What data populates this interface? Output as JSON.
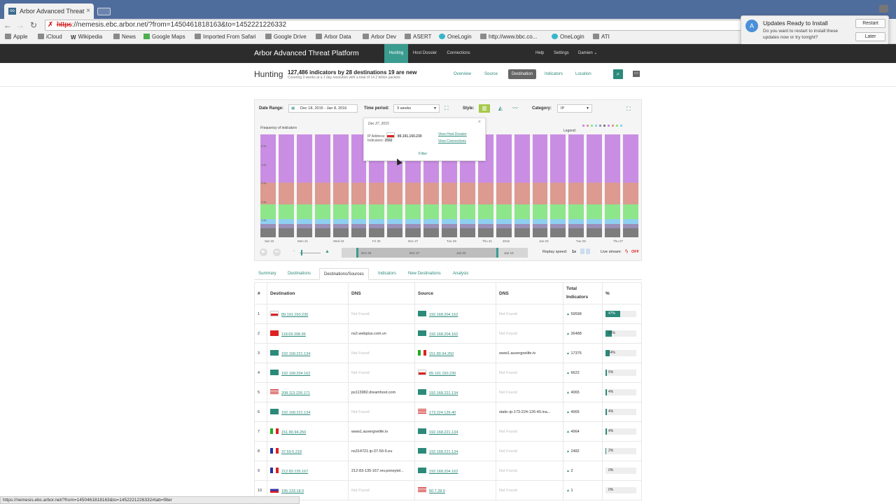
{
  "browser": {
    "tab_title": "Arbor Advanced Threat Plа",
    "tab_icon": "oo",
    "url_scheme": "https",
    "url_rest": "://nemesis.ebc.arbor.net/?from=1450461818163&to=1452221226332",
    "bookmarks": [
      "Apple",
      "iCloud",
      "Wikipedia",
      "News",
      "Google Maps",
      "Imported From Safari",
      "Google Drive",
      "Arbor Data",
      "Arbor Dev",
      "ASERT",
      "OneLogin",
      "http://www.bbc.co...",
      "OneLogin",
      "ATI"
    ],
    "status_url": "https://nemesis.ebc.arbor.net/?from=1450461818163&to=1452221226332#tab=filter"
  },
  "notification": {
    "title": "Updates Ready to Install",
    "message": "Do you want to restart to install these updates now or try tonight?",
    "restart_label": "Restart",
    "later_label": "Later"
  },
  "app": {
    "brand": "Arbor Advanced Threat Platform",
    "nav": [
      "Hunting",
      "Host Dossier",
      "Connections"
    ],
    "nav_active": "Hunting",
    "right_links": [
      "Help",
      "Settings",
      "Damien ⌄"
    ]
  },
  "hunting": {
    "title": "Hunting",
    "stat": "127,486 indicators by 28 destinations 19 are new",
    "substat": "Covering 3 weeks at a 1 day resolution with a total of 14.2 billion packets",
    "subnav": [
      "Overview",
      "Source",
      "Destination",
      "Indicators",
      "Location"
    ],
    "subnav_active": "Destination"
  },
  "controls": {
    "date_range_label": "Date Range:",
    "date_range_value": "Dec 18, 2015 - Jan 8, 2016",
    "time_period_label": "Time period:",
    "time_period_value": "3 weeks",
    "style_label": "Style:",
    "category_label": "Category:",
    "category_value": "IP"
  },
  "chart_data": {
    "type": "bar",
    "caption": "Frequency of indicators",
    "legend_label": "Legend:",
    "x_ticks": [
      "Sat 19",
      "Mon 21",
      "Wed 23",
      "Fri 25",
      "Dec 27",
      "Tue 29",
      "Thu 31",
      "2016",
      "Jan 03",
      "Tue 05",
      "Thu 07"
    ],
    "y_ticks": [
      "6.0k",
      "4.0k",
      "3.0k",
      "2.0k",
      "1.0k"
    ],
    "layers": [
      {
        "color": "#c98ee3",
        "share": 0.47
      },
      {
        "color": "#dc9a90",
        "share": 0.21
      },
      {
        "color": "#8ee68a",
        "share": 0.14
      },
      {
        "color": "#8fd0f0",
        "share": 0.05
      },
      {
        "color": "#9a8fb8",
        "share": 0.04
      },
      {
        "color": "#7d7d7d",
        "share": 0.09
      }
    ],
    "tooltip": {
      "date": "Dec 27, 2015",
      "ip_label": "IP Address:",
      "ip": "89.191.150.230",
      "indicators_label": "Indicators:",
      "indicators": "2592",
      "link_host": "View Host Dossier",
      "link_conn": "View Connections",
      "filter": "Filter"
    }
  },
  "timeline": {
    "labels": [
      "Dec 20",
      "Dec 27",
      "Jan 03",
      "Jan 10"
    ],
    "replay_label": "Replay speed:",
    "replay_value": "1x",
    "live_label": "Live stream:",
    "live_value": "OFF"
  },
  "detail_tabs": [
    "Summary",
    "Destinations",
    "Destinations/Sources",
    "Indicators",
    "New Destinations",
    "Analysis"
  ],
  "detail_tab_active": "Destinations/Sources",
  "table": {
    "headers": [
      "#",
      "Destination",
      "DNS",
      "Source",
      "DNS",
      "Total Indicators",
      "%"
    ],
    "rows": [
      {
        "n": "1",
        "dest": "89.191.150.230",
        "dflag": "pl",
        "ddns": "Not Found",
        "src": "192.168.204.162",
        "sflag": "lan",
        "sdns": "Not Found",
        "total": "59598",
        "pct": "47%",
        "p": 47
      },
      {
        "n": "2",
        "dest": "118.69.208.95",
        "dflag": "vn",
        "ddns": "ns2.webplus.com.vn",
        "src": "192.168.204.162",
        "sflag": "lan",
        "sdns": "Not Found",
        "total": "26488",
        "pct": "21%",
        "p": 21
      },
      {
        "n": "3",
        "dest": "192.168.221.134",
        "dflag": "lan",
        "ddns": "Not Found",
        "src": "151.80.94.250",
        "sflag": "it",
        "sdns": "www1.auvergnelife.tv",
        "total": "17376",
        "pct": "14%",
        "p": 14
      },
      {
        "n": "4",
        "dest": "192.168.204.162",
        "dflag": "lan",
        "ddns": "Not Found",
        "src": "89.191.150.230",
        "sflag": "pl",
        "sdns": "Not Found",
        "total": "6622",
        "pct": "5%",
        "p": 5
      },
      {
        "n": "5",
        "dest": "208.113.226.171",
        "dflag": "us",
        "ddns": "ps113982.dreamhost.com",
        "src": "192.168.221.134",
        "sflag": "lan",
        "sdns": "Not Found",
        "total": "4965",
        "pct": "4%",
        "p": 4
      },
      {
        "n": "6",
        "dest": "192.168.221.134",
        "dflag": "lan",
        "ddns": "Not Found",
        "src": "173.224.126.40",
        "sflag": "us",
        "sdns": "static-ip-173-224-126-40.ina...",
        "total": "4965",
        "pct": "4%",
        "p": 4
      },
      {
        "n": "7",
        "dest": "151.80.94.250",
        "dflag": "it",
        "ddns": "www1.auvergnelife.tv",
        "src": "192.168.221.134",
        "sflag": "lan",
        "sdns": "Not Found",
        "total": "4964",
        "pct": "4%",
        "p": 4
      },
      {
        "n": "8",
        "dest": "37.59.5.218",
        "dflag": "fr",
        "ddns": "ns314721.ip-37-59-5.eu",
        "src": "192.168.221.134",
        "sflag": "lan",
        "sdns": "Not Found",
        "total": "2482",
        "pct": "2%",
        "p": 2
      },
      {
        "n": "9",
        "dest": "212.83.135.167",
        "dflag": "fr",
        "ddns": "212-83-135-167.rev.poneytel...",
        "src": "192.168.204.162",
        "sflag": "lan",
        "sdns": "Not Found",
        "total": "2",
        "pct": "0%",
        "p": 0
      },
      {
        "n": "10",
        "dest": "195.133.18.0",
        "dflag": "ru",
        "ddns": "Not Found",
        "src": "50.7.28.0",
        "sflag": "us",
        "sdns": "Not Found",
        "total": "1",
        "pct": "0%",
        "p": 0
      }
    ]
  }
}
